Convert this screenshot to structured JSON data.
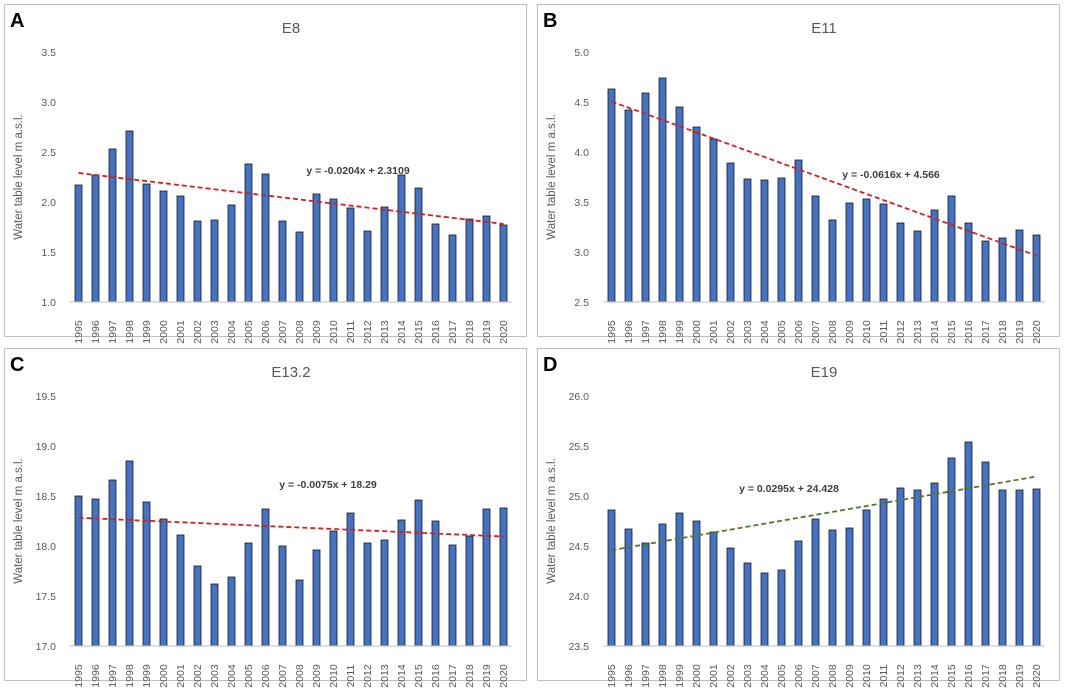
{
  "chart_data": [
    {
      "panel": "A",
      "type": "bar",
      "title": "E8",
      "ylabel": "Water table level m a.s.l.",
      "xlabel": "",
      "ylim": [
        1.0,
        3.5
      ],
      "yticks": [
        "1.0",
        "1.5",
        "2.0",
        "2.5",
        "3.0",
        "3.5"
      ],
      "categories": [
        "1995",
        "1996",
        "1997",
        "1998",
        "1999",
        "2000",
        "2001",
        "2002",
        "2003",
        "2004",
        "2005",
        "2006",
        "2007",
        "2008",
        "2009",
        "2010",
        "2011",
        "2012",
        "2013",
        "2014",
        "2015",
        "2016",
        "2017",
        "2018",
        "2019",
        "2020"
      ],
      "values": [
        2.17,
        2.27,
        2.53,
        2.71,
        2.18,
        2.11,
        2.06,
        1.81,
        1.82,
        1.97,
        2.38,
        2.28,
        1.81,
        1.7,
        2.08,
        2.03,
        1.94,
        1.71,
        1.95,
        2.27,
        2.14,
        1.78,
        1.67,
        1.83,
        1.86,
        1.77
      ],
      "trendline": {
        "slope": -0.0204,
        "intercept": 2.3109,
        "color": "#d62020"
      },
      "equation": "y = -0.0204x + 2.3109",
      "bar_color": "#4472c4"
    },
    {
      "panel": "B",
      "type": "bar",
      "title": "E11",
      "ylabel": "Water table level m a.s.l.",
      "xlabel": "",
      "ylim": [
        2.5,
        5.0
      ],
      "yticks": [
        "2.5",
        "3.0",
        "3.5",
        "4.0",
        "4.5",
        "5.0"
      ],
      "categories": [
        "1995",
        "1996",
        "1997",
        "1998",
        "1999",
        "2000",
        "2001",
        "2002",
        "2003",
        "2004",
        "2005",
        "2006",
        "2007",
        "2008",
        "2009",
        "2010",
        "2011",
        "2012",
        "2013",
        "2014",
        "2015",
        "2016",
        "2017",
        "2018",
        "2019",
        "2020"
      ],
      "values": [
        4.63,
        4.42,
        4.59,
        4.74,
        4.45,
        4.25,
        4.13,
        3.89,
        3.73,
        3.72,
        3.74,
        3.92,
        3.56,
        3.32,
        3.49,
        3.53,
        3.48,
        3.29,
        3.21,
        3.42,
        3.56,
        3.29,
        3.11,
        3.14,
        3.22,
        3.17
      ],
      "trendline": {
        "slope": -0.0616,
        "intercept": 4.566,
        "color": "#d62020"
      },
      "equation": "y = -0.0616x + 4.566",
      "bar_color": "#4472c4"
    },
    {
      "panel": "C",
      "type": "bar",
      "title": "E13.2",
      "ylabel": "Water table level m a.s.l.",
      "xlabel": "",
      "ylim": [
        17.0,
        19.5
      ],
      "yticks": [
        "17.0",
        "17.5",
        "18.0",
        "18.5",
        "19.0",
        "19.5"
      ],
      "categories": [
        "1995",
        "1996",
        "1997",
        "1998",
        "1999",
        "2000",
        "2001",
        "2002",
        "2003",
        "2004",
        "2005",
        "2006",
        "2007",
        "2008",
        "2009",
        "2010",
        "2011",
        "2012",
        "2013",
        "2014",
        "2015",
        "2016",
        "2017",
        "2018",
        "2019",
        "2020"
      ],
      "values": [
        18.5,
        18.47,
        18.66,
        18.85,
        18.44,
        18.27,
        18.11,
        17.8,
        17.62,
        17.69,
        18.03,
        18.37,
        18.0,
        17.66,
        17.96,
        18.15,
        18.33,
        18.03,
        18.06,
        18.26,
        18.46,
        18.25,
        18.01,
        18.1,
        18.37,
        18.38
      ],
      "trendline": {
        "slope": -0.0075,
        "intercept": 18.29,
        "color": "#d62020"
      },
      "equation": "y = -0.0075x + 18.29",
      "bar_color": "#4472c4"
    },
    {
      "panel": "D",
      "type": "bar",
      "title": "E19",
      "ylabel": "Water table level m a.s.l.",
      "xlabel": "",
      "ylim": [
        23.5,
        26.0
      ],
      "yticks": [
        "23.5",
        "24.0",
        "24.5",
        "25.0",
        "25.5",
        "26.0"
      ],
      "categories": [
        "1995",
        "1996",
        "1997",
        "1998",
        "1999",
        "2000",
        "2001",
        "2002",
        "2003",
        "2004",
        "2005",
        "2006",
        "2007",
        "2008",
        "2009",
        "2010",
        "2011",
        "2012",
        "2013",
        "2014",
        "2015",
        "2016",
        "2017",
        "2018",
        "2019",
        "2020"
      ],
      "values": [
        24.86,
        24.67,
        24.53,
        24.72,
        24.83,
        24.75,
        24.64,
        24.48,
        24.33,
        24.23,
        24.26,
        24.55,
        24.77,
        24.66,
        24.68,
        24.86,
        24.97,
        25.08,
        25.06,
        25.13,
        25.38,
        25.54,
        25.34,
        25.06,
        25.06,
        25.07
      ],
      "trendline": {
        "slope": 0.0295,
        "intercept": 24.428,
        "color": "#4f7a28"
      },
      "equation": "y = 0.0295x + 24.428",
      "bar_color": "#4472c4"
    }
  ]
}
